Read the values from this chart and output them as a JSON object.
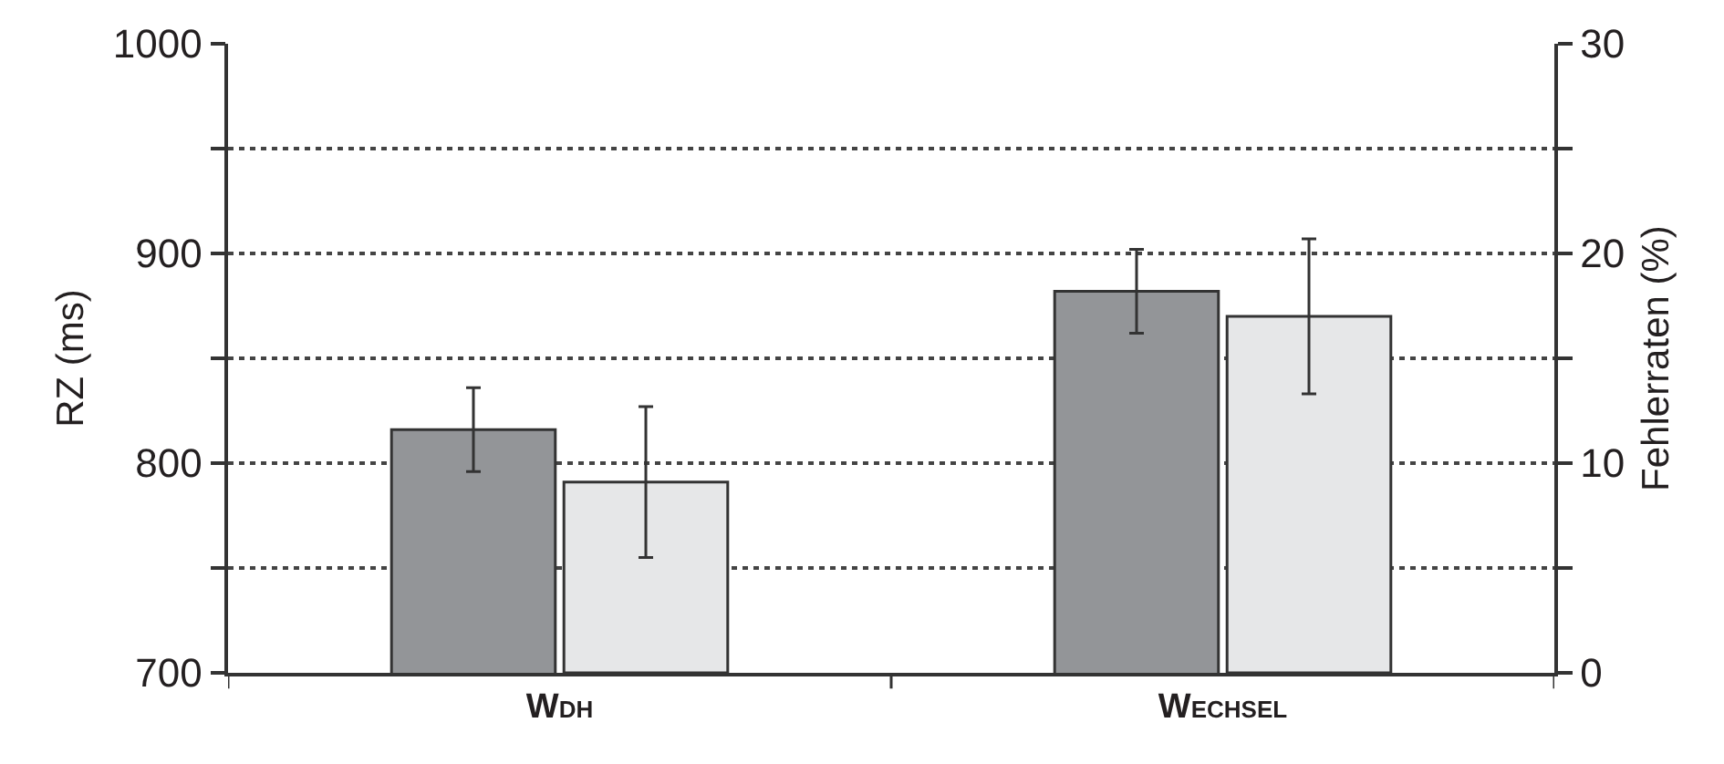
{
  "chart_data": {
    "type": "bar",
    "categories": [
      "Wdh",
      "Wechsel"
    ],
    "series": [
      {
        "color": "#939598",
        "values": [
          816,
          882
        ],
        "errors": [
          20,
          20
        ]
      },
      {
        "color": "#e6e7e8",
        "values": [
          9.1,
          17.0
        ],
        "errors": [
          3.6,
          3.7
        ],
        "axis": "y2"
      }
    ],
    "ylabel": "RZ (ms)",
    "y2label": "Fehlerraten (%)",
    "ylim": [
      700,
      1000
    ],
    "yticks": [
      700,
      {
        "value": 750,
        "label": null
      },
      800,
      {
        "value": 850,
        "label": null
      },
      900,
      {
        "value": 950,
        "label": null
      },
      1000
    ],
    "y2lim": [
      0,
      30
    ],
    "y2ticks": [
      0,
      {
        "value": 5,
        "label": null
      },
      10,
      {
        "value": 15,
        "label": null
      },
      20,
      {
        "value": 25,
        "label": null
      },
      30
    ],
    "grid": "y"
  }
}
